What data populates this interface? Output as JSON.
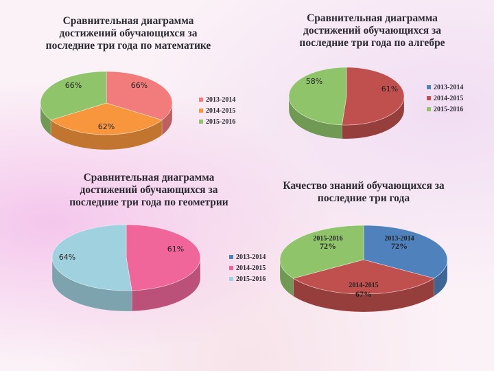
{
  "chart_data": [
    {
      "type": "pie",
      "title": "Сравнительная диаграмма достижений обучающихся за последние три года по математике",
      "series": [
        {
          "values": [
            66,
            62,
            66
          ]
        }
      ],
      "categories": [
        "2013-2014",
        "2014-2015",
        "2015-2016"
      ],
      "labels": [
        "66%",
        "62%",
        "66%"
      ],
      "colors": [
        "#f27b7b",
        "#f7963c",
        "#8fc46a"
      ],
      "legend": "right"
    },
    {
      "type": "pie",
      "title": "Сравнительная диаграмма достижений обучающихся за последние три года по алгебре",
      "series": [
        {
          "values": [
            0,
            61,
            58
          ]
        }
      ],
      "categories": [
        "2013-2014",
        "2014-2015",
        "2015-2016"
      ],
      "labels": [
        "",
        "61%",
        "58%"
      ],
      "colors": [
        "#4f81bd",
        "#c0504d",
        "#8fc46a"
      ],
      "legend": "right"
    },
    {
      "type": "pie",
      "title": "Сравнительная диаграмма достижений обучающихся за последние три года по геометрии",
      "series": [
        {
          "values": [
            0,
            61,
            64
          ]
        }
      ],
      "categories": [
        "2013-2014",
        "2014-2015",
        "2015-2016"
      ],
      "labels": [
        "",
        "61%",
        "64%"
      ],
      "colors": [
        "#4f81bd",
        "#f0669a",
        "#9fd1df"
      ],
      "legend": "right"
    },
    {
      "type": "pie",
      "title": "Качество знаний обучающихся за последние три года",
      "series": [
        {
          "values": [
            72,
            67,
            72
          ]
        }
      ],
      "categories": [
        "2013-2014",
        "2014-2015",
        "2015-2016"
      ],
      "labels": [
        "72%",
        "67%",
        "72%"
      ],
      "colors": [
        "#4f81bd",
        "#c0504d",
        "#8fc46a"
      ],
      "legend": "none"
    }
  ]
}
